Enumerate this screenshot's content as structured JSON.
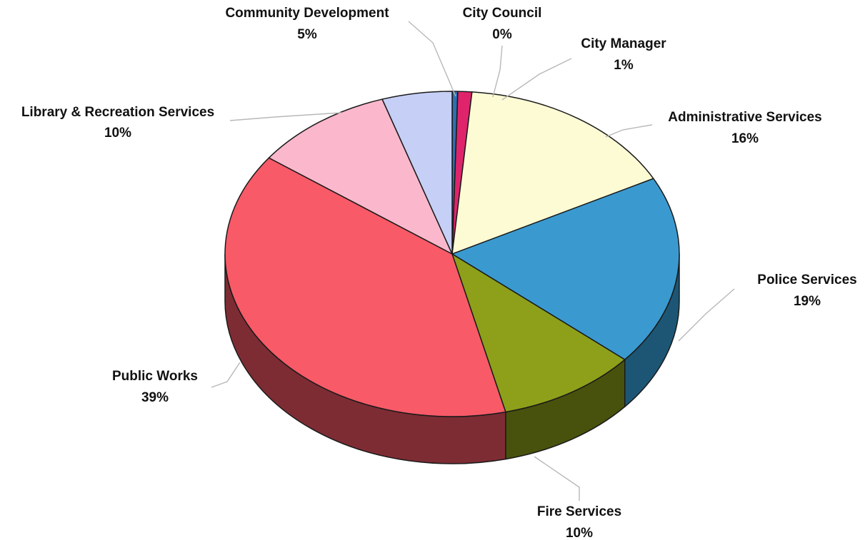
{
  "chart_data": {
    "type": "pie",
    "title": "",
    "style": "3d-tilted",
    "start_angle_deg": -90,
    "direction": "clockwise",
    "slices": [
      {
        "name": "City Council",
        "label": "0%",
        "value": 0.4,
        "color": "#2e6fb0",
        "side_color": "#1c4270"
      },
      {
        "name": "City Manager",
        "label": "1%",
        "value": 1,
        "color": "#e0246c",
        "side_color": "#8a1242"
      },
      {
        "name": "Administrative Services",
        "label": "16%",
        "value": 16,
        "color": "#fdfbd4",
        "side_color": "#a8a682"
      },
      {
        "name": "Police Services",
        "label": "19%",
        "value": 19,
        "color": "#3a9ad0",
        "side_color": "#1d5675"
      },
      {
        "name": "Fire Services",
        "label": "10%",
        "value": 10,
        "color": "#8ea01a",
        "side_color": "#48520c"
      },
      {
        "name": "Public Works",
        "label": "39%",
        "value": 39,
        "color": "#f85a68",
        "side_color": "#7e2c34"
      },
      {
        "name": "Library & Recreation Services",
        "label": "10%",
        "value": 10,
        "color": "#fbb8cc",
        "side_color": "#9a6a78"
      },
      {
        "name": "Community Development",
        "label": "5%",
        "value": 5,
        "color": "#c6cff5",
        "side_color": "#6d7498"
      }
    ]
  }
}
